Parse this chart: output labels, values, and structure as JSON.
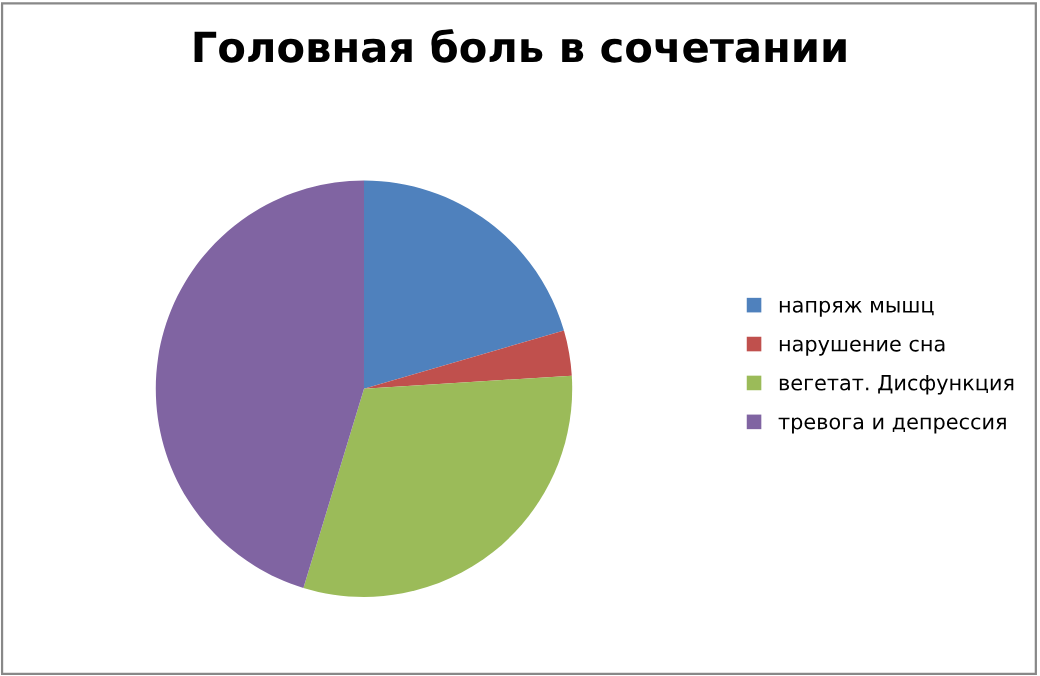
{
  "chart_data": {
    "type": "pie",
    "title": "Головная боль в сочетании",
    "categories": [
      "напряж мышц",
      "нарушение сна",
      "вегетат. Дисфункция",
      "тревога и депрессия"
    ],
    "values": [
      20.5,
      3.5,
      30.7,
      45.3
    ],
    "colors": [
      "#4f81bd",
      "#c0504d",
      "#9bbb59",
      "#8064a2"
    ],
    "legend": "right"
  }
}
